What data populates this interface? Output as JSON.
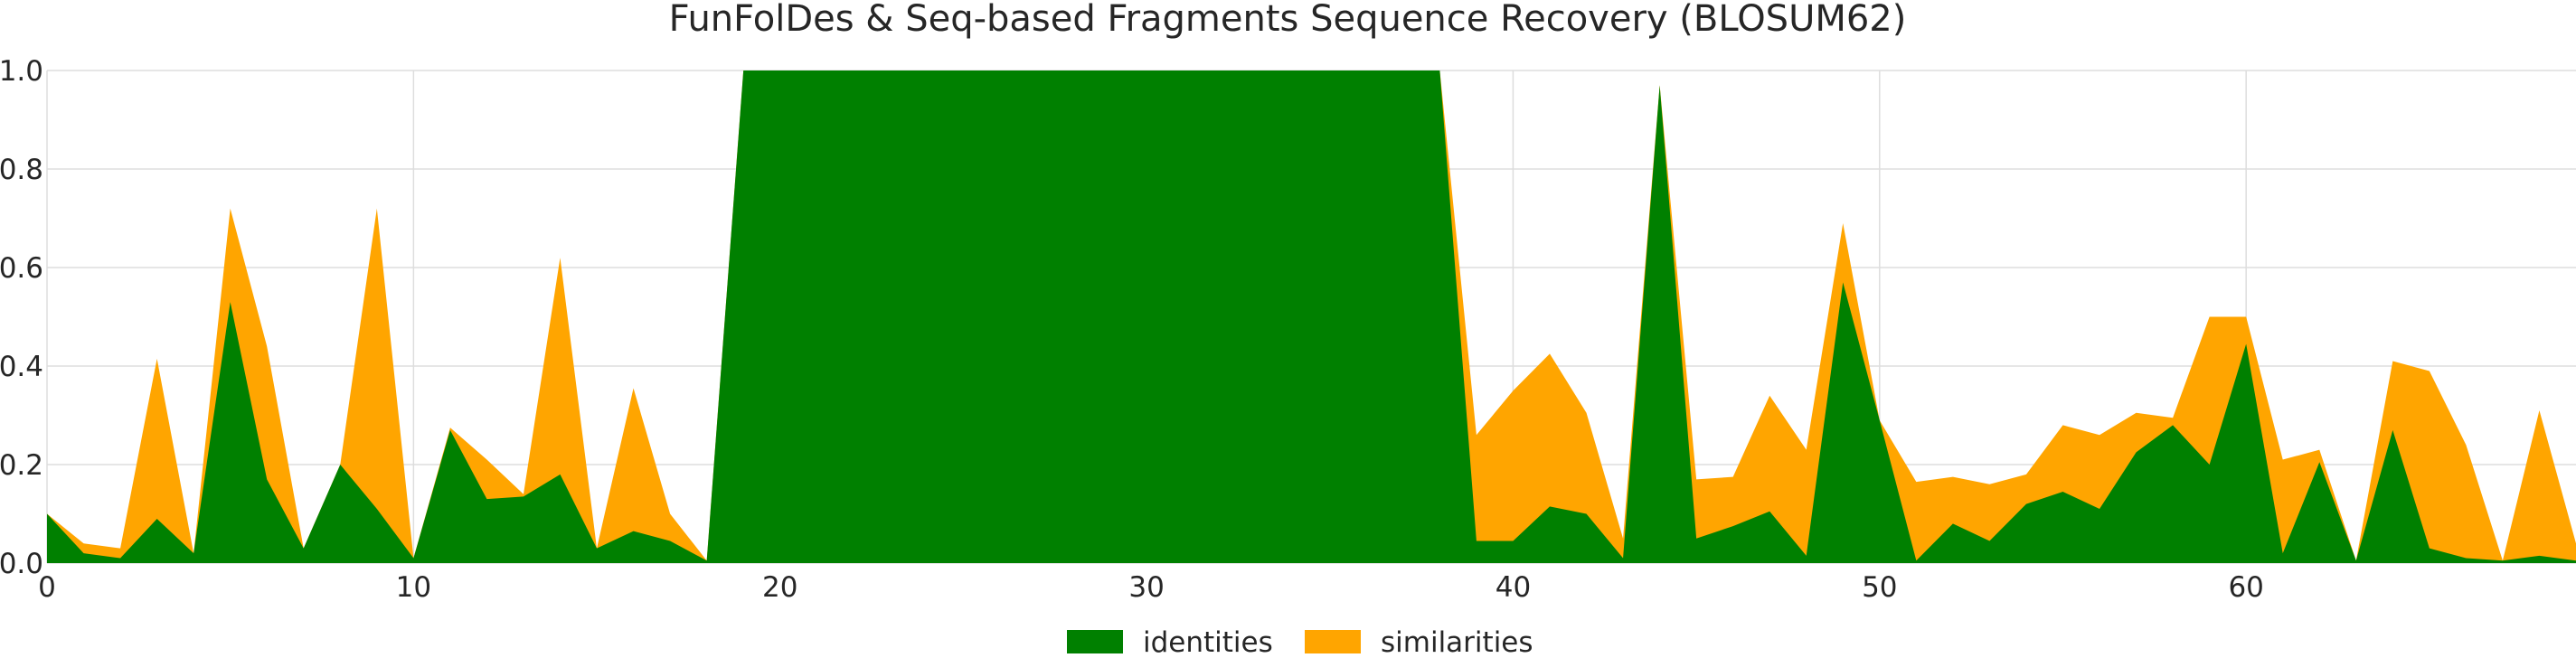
{
  "chart_data": {
    "type": "area",
    "title": "FunFolDes & Seq-based Fragments Sequence Recovery (BLOSUM62)",
    "xlabel": "",
    "ylabel": "",
    "xlim": [
      0,
      69
    ],
    "ylim": [
      0,
      1.0
    ],
    "xticks": [
      0,
      10,
      20,
      30,
      40,
      50,
      60
    ],
    "yticks": [
      0.0,
      0.2,
      0.4,
      0.6,
      0.8,
      1.0
    ],
    "grid": true,
    "legend": "bottom-center",
    "x": [
      0,
      1,
      2,
      3,
      4,
      5,
      6,
      7,
      8,
      9,
      10,
      11,
      12,
      13,
      14,
      15,
      16,
      17,
      18,
      19,
      20,
      21,
      22,
      23,
      24,
      25,
      26,
      27,
      28,
      29,
      30,
      31,
      32,
      33,
      34,
      35,
      36,
      37,
      38,
      39,
      40,
      41,
      42,
      43,
      44,
      45,
      46,
      47,
      48,
      49,
      50,
      51,
      52,
      53,
      54,
      55,
      56,
      57,
      58,
      59,
      60,
      61,
      62,
      63,
      64,
      65,
      66,
      67,
      68,
      69
    ],
    "series": [
      {
        "name": "identities",
        "color": "#008000",
        "values": [
          0.1,
          0.02,
          0.01,
          0.09,
          0.02,
          0.53,
          0.17,
          0.03,
          0.2,
          0.11,
          0.01,
          0.27,
          0.13,
          0.135,
          0.18,
          0.03,
          0.065,
          0.045,
          0.005,
          1.0,
          1.0,
          1.0,
          1.0,
          1.0,
          1.0,
          1.0,
          1.0,
          1.0,
          1.0,
          1.0,
          1.0,
          1.0,
          1.0,
          1.0,
          1.0,
          1.0,
          1.0,
          1.0,
          1.0,
          0.045,
          0.045,
          0.115,
          0.1,
          0.01,
          0.97,
          0.05,
          0.075,
          0.105,
          0.015,
          0.57,
          0.29,
          0.005,
          0.08,
          0.045,
          0.12,
          0.145,
          0.11,
          0.225,
          0.28,
          0.2,
          0.445,
          0.02,
          0.205,
          0.005,
          0.27,
          0.03,
          0.01,
          0.005,
          0.015,
          0.005
        ]
      },
      {
        "name": "similarities",
        "color": "#FFA500",
        "values": [
          0.1,
          0.04,
          0.03,
          0.415,
          0.02,
          0.72,
          0.44,
          0.03,
          0.2,
          0.72,
          0.01,
          0.275,
          0.21,
          0.14,
          0.62,
          0.03,
          0.355,
          0.1,
          0.005,
          1.0,
          1.0,
          1.0,
          1.0,
          1.0,
          1.0,
          1.0,
          1.0,
          1.0,
          1.0,
          1.0,
          1.0,
          1.0,
          1.0,
          1.0,
          1.0,
          1.0,
          1.0,
          1.0,
          1.0,
          0.26,
          0.35,
          0.425,
          0.305,
          0.05,
          0.97,
          0.17,
          0.175,
          0.34,
          0.23,
          0.69,
          0.29,
          0.165,
          0.175,
          0.16,
          0.18,
          0.28,
          0.26,
          0.305,
          0.295,
          0.5,
          0.5,
          0.21,
          0.23,
          0.005,
          0.41,
          0.39,
          0.24,
          0.005,
          0.31,
          0.04
        ]
      }
    ]
  }
}
